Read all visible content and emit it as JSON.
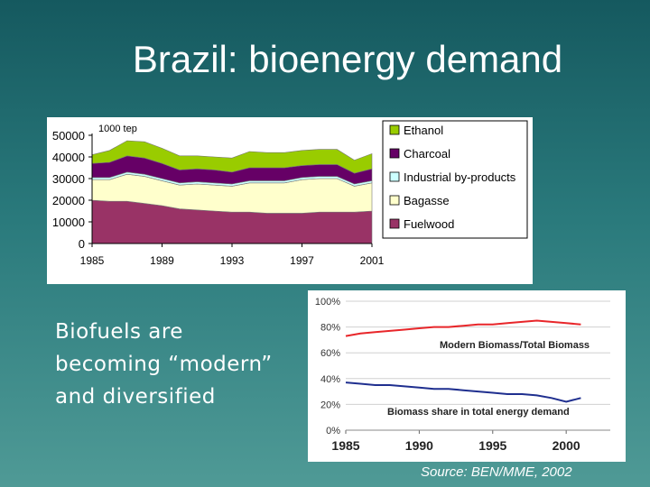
{
  "slide": {
    "title": "Brazil: bioenergy demand",
    "subtitle_lines": [
      "Biofuels are",
      "becoming “modern”",
      "and diversified"
    ],
    "source": "Source: BEN/MME, 2002"
  },
  "chart_data": [
    {
      "type": "area",
      "stacked": true,
      "unit_label": "1000 tep",
      "x": [
        1985,
        1986,
        1987,
        1988,
        1989,
        1990,
        1991,
        1992,
        1993,
        1994,
        1995,
        1996,
        1997,
        1998,
        1999,
        2000,
        2001
      ],
      "xticks": [
        "1985",
        "1989",
        "1993",
        "1997",
        "2001"
      ],
      "yticks": [
        "50000",
        "40000",
        "30000",
        "20000",
        "10000",
        "0"
      ],
      "ylim": [
        0,
        50000
      ],
      "legend_position": "right",
      "series": [
        {
          "name": "Fuelwood",
          "color": "#993366",
          "values": [
            20000,
            19500,
            19500,
            18500,
            17500,
            16000,
            15500,
            15000,
            14500,
            14500,
            14000,
            14000,
            14000,
            14500,
            14500,
            14500,
            15000
          ]
        },
        {
          "name": "Bagasse",
          "color": "#ffffcc",
          "values": [
            9500,
            10000,
            12500,
            12500,
            11500,
            11000,
            12000,
            12000,
            12000,
            13500,
            14000,
            14000,
            15500,
            15500,
            15500,
            12000,
            13000
          ]
        },
        {
          "name": "Industrial  by-products",
          "color": "#ccffff",
          "values": [
            1000,
            1000,
            1000,
            1000,
            1000,
            1000,
            1000,
            1000,
            1000,
            1000,
            1000,
            1000,
            1000,
            1000,
            1000,
            1000,
            1000
          ]
        },
        {
          "name": "Charcoal",
          "color": "#660066",
          "values": [
            6500,
            7000,
            7500,
            7500,
            7000,
            6000,
            6000,
            6000,
            5500,
            6000,
            6000,
            6000,
            5500,
            5500,
            5500,
            5000,
            5500
          ]
        },
        {
          "name": "Ethanol",
          "color": "#99cc00",
          "values": [
            4000,
            5500,
            7000,
            7500,
            7000,
            6500,
            6000,
            6000,
            6500,
            7500,
            7000,
            7000,
            7000,
            7000,
            7000,
            6000,
            7000
          ]
        }
      ]
    },
    {
      "type": "line",
      "x": [
        1985,
        1986,
        1987,
        1988,
        1989,
        1990,
        1991,
        1992,
        1993,
        1994,
        1995,
        1996,
        1997,
        1998,
        1999,
        2000,
        2001
      ],
      "xticks": [
        "1985",
        "1990",
        "1995",
        "2000"
      ],
      "yticks": [
        "100%",
        "80%",
        "60%",
        "40%",
        "20%",
        "0%"
      ],
      "ylim": [
        0,
        100
      ],
      "series": [
        {
          "name": "Modern Biomass/Total Biomass",
          "color": "#e8262a",
          "values": [
            73,
            75,
            76,
            77,
            78,
            79,
            80,
            80,
            81,
            82,
            82,
            83,
            84,
            85,
            84,
            83,
            82
          ]
        },
        {
          "name": "Biomass share in total energy demand",
          "color": "#1f2f8f",
          "values": [
            37,
            36,
            35,
            35,
            34,
            33,
            32,
            32,
            31,
            30,
            29,
            28,
            28,
            27,
            25,
            22,
            25
          ]
        }
      ]
    }
  ]
}
